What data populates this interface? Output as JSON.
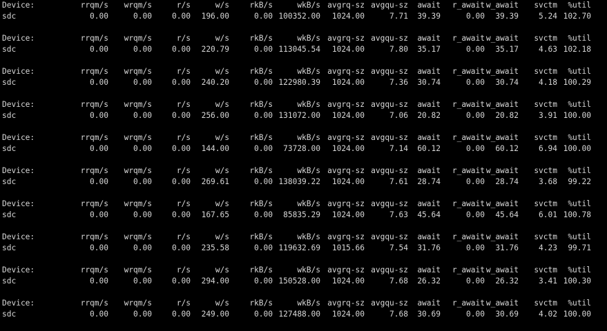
{
  "terminal": {
    "headers": [
      "Device:",
      "rrqm/s",
      "wrqm/s",
      "r/s",
      "w/s",
      "rkB/s",
      "wkB/s",
      "avgrq-sz",
      "avgqu-sz",
      "await",
      "r_await",
      "w_await",
      "svctm",
      "%util"
    ],
    "blocks": [
      {
        "device": "sdc",
        "values": [
          "0.00",
          "0.00",
          "0.00",
          "196.00",
          "0.00",
          "100352.00",
          "1024.00",
          "7.71",
          "39.39",
          "0.00",
          "39.39",
          "5.24",
          "102.70"
        ]
      },
      {
        "device": "sdc",
        "values": [
          "0.00",
          "0.00",
          "0.00",
          "220.79",
          "0.00",
          "113045.54",
          "1024.00",
          "7.80",
          "35.17",
          "0.00",
          "35.17",
          "4.63",
          "102.18"
        ]
      },
      {
        "device": "sdc",
        "values": [
          "0.00",
          "0.00",
          "0.00",
          "240.20",
          "0.00",
          "122980.39",
          "1024.00",
          "7.36",
          "30.74",
          "0.00",
          "30.74",
          "4.18",
          "100.29"
        ]
      },
      {
        "device": "sdc",
        "values": [
          "0.00",
          "0.00",
          "0.00",
          "256.00",
          "0.00",
          "131072.00",
          "1024.00",
          "7.06",
          "20.82",
          "0.00",
          "20.82",
          "3.91",
          "100.00"
        ]
      },
      {
        "device": "sdc",
        "values": [
          "0.00",
          "0.00",
          "0.00",
          "144.00",
          "0.00",
          "73728.00",
          "1024.00",
          "7.14",
          "60.12",
          "0.00",
          "60.12",
          "6.94",
          "100.00"
        ]
      },
      {
        "device": "sdc",
        "values": [
          "0.00",
          "0.00",
          "0.00",
          "269.61",
          "0.00",
          "138039.22",
          "1024.00",
          "7.61",
          "28.74",
          "0.00",
          "28.74",
          "3.68",
          "99.22"
        ]
      },
      {
        "device": "sdc",
        "values": [
          "0.00",
          "0.00",
          "0.00",
          "167.65",
          "0.00",
          "85835.29",
          "1024.00",
          "7.63",
          "45.64",
          "0.00",
          "45.64",
          "6.01",
          "100.78"
        ]
      },
      {
        "device": "sdc",
        "values": [
          "0.00",
          "0.00",
          "0.00",
          "235.58",
          "0.00",
          "119632.69",
          "1015.66",
          "7.54",
          "31.76",
          "0.00",
          "31.76",
          "4.23",
          "99.71"
        ]
      },
      {
        "device": "sdc",
        "values": [
          "0.00",
          "0.00",
          "0.00",
          "294.00",
          "0.00",
          "150528.00",
          "1024.00",
          "7.68",
          "26.32",
          "0.00",
          "26.32",
          "3.41",
          "100.30"
        ]
      },
      {
        "device": "sdc",
        "values": [
          "0.00",
          "0.00",
          "0.00",
          "249.00",
          "0.00",
          "127488.00",
          "1024.00",
          "7.68",
          "30.69",
          "0.00",
          "30.69",
          "4.02",
          "100.00"
        ]
      }
    ]
  },
  "colors": {
    "background": "#000000",
    "text": "#d8d8d8"
  }
}
